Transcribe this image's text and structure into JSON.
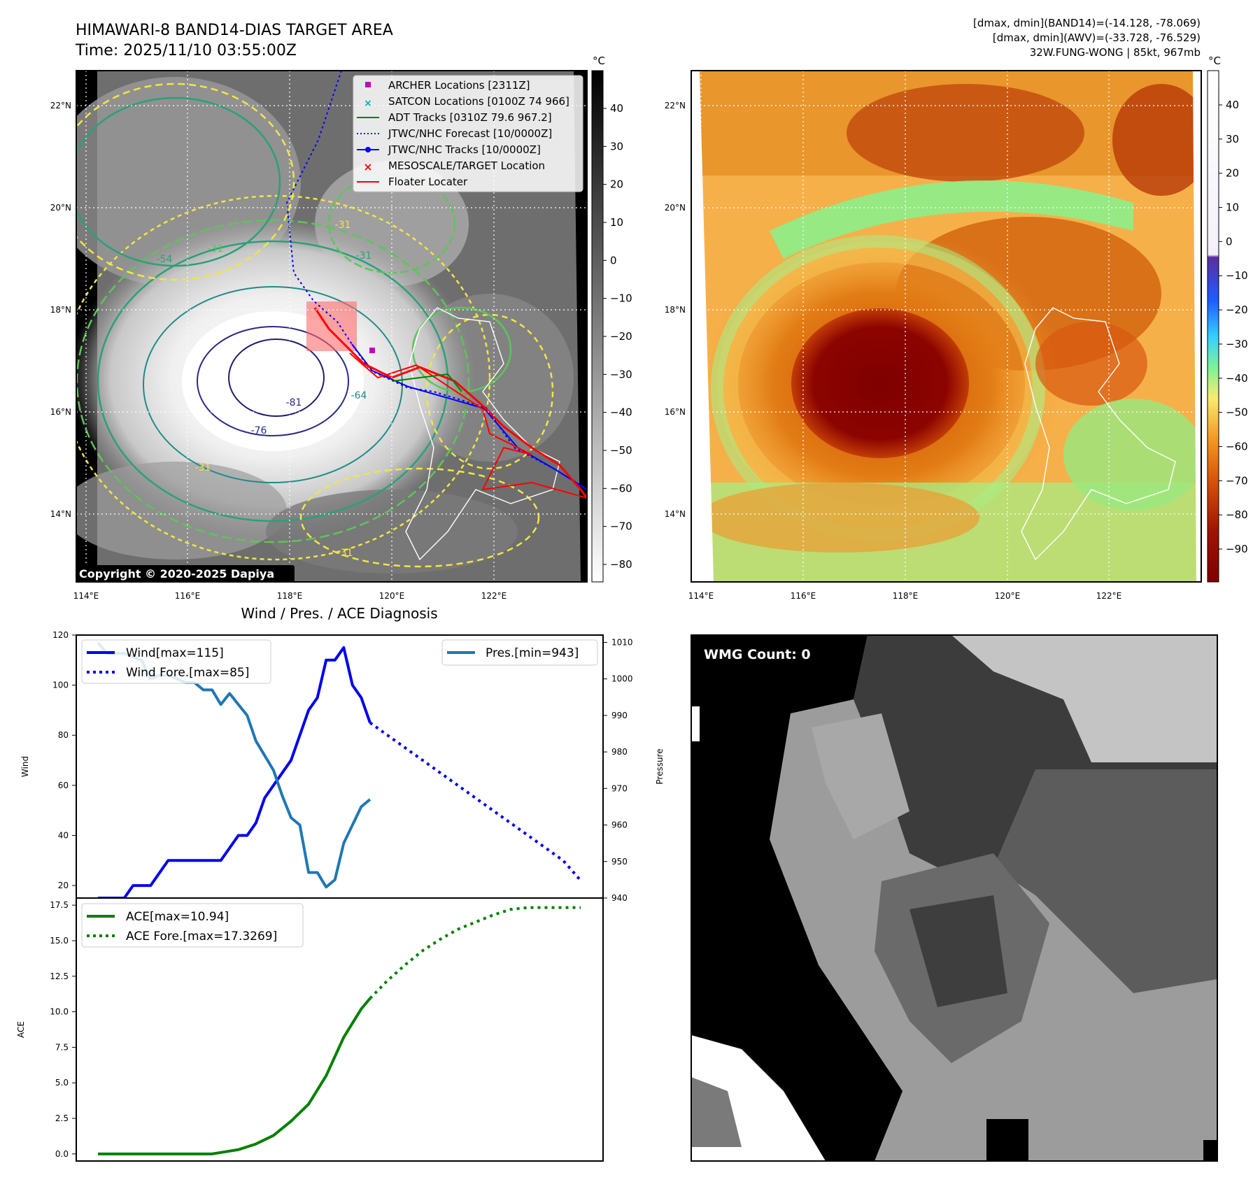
{
  "header": {
    "title_line1": "HIMAWARI-8 BAND14-DIAS TARGET AREA",
    "title_line2": "Time: 2025/11/10 03:55:00Z",
    "stats_line1": "[dmax, dmin](BAND14)=(-14.128, -78.069)",
    "stats_line2": "[dmax, dmin](AWV)=(-33.728, -76.529)",
    "stats_line3": "32W.FUNG-WONG | 85kt, 967mb"
  },
  "map_panel": {
    "lat_labels": [
      "22°N",
      "20°N",
      "18°N",
      "16°N",
      "14°N"
    ],
    "lon_labels": [
      "114°E",
      "116°E",
      "118°E",
      "120°E",
      "122°E"
    ],
    "colorbar_unit": "°C",
    "colorbar_ticks": [
      "40",
      "30",
      "20",
      "10",
      "0",
      "−10",
      "−20",
      "−30",
      "−40",
      "−50",
      "−60",
      "−70",
      "−80"
    ],
    "copyright": "Copyright © 2020-2025 Dapiya",
    "contour_labels": [
      "-81",
      "-76",
      "-64",
      "-31",
      "-31",
      "-31",
      "-31",
      "-54",
      "-31"
    ],
    "legend": [
      {
        "label": "ARCHER Locations [2311Z]",
        "color": "#c000c0",
        "marker": "square"
      },
      {
        "label": "SATCON Locations [0100Z 74 966]",
        "color": "#00b0b0",
        "marker": "x"
      },
      {
        "label": "ADT Tracks [0310Z 79.6 967.2]",
        "color": "#008000",
        "marker": "line"
      },
      {
        "label": "JTWC/NHC Forecast [10/0000Z]",
        "color": "#0000ff",
        "marker": "dotted"
      },
      {
        "label": "JTWC/NHC Tracks [10/0000Z]",
        "color": "#0000ff",
        "marker": "line-dot"
      },
      {
        "label": "MESOSCALE/TARGET Location",
        "color": "#ff0000",
        "marker": "x"
      },
      {
        "label": "Floater Locater",
        "color": "#ff0000",
        "marker": "line"
      }
    ]
  },
  "awv_panel": {
    "lat_labels": [
      "22°N",
      "20°N",
      "18°N",
      "16°N",
      "14°N"
    ],
    "lon_labels": [
      "114°E",
      "116°E",
      "118°E",
      "120°E",
      "122°E"
    ],
    "colorbar_unit": "°C",
    "colorbar_ticks": [
      "40",
      "30",
      "20",
      "10",
      "0",
      "−10",
      "−20",
      "−30",
      "−40",
      "−50",
      "−60",
      "−70",
      "−80",
      "−90"
    ]
  },
  "wmg_panel": {
    "count_label": "WMG Count: 0"
  },
  "diagnosis": {
    "title": "Wind / Pres. / ACE Diagnosis",
    "wind_axis_label": "Wind",
    "pressure_axis_label": "Pressure",
    "ace_axis_label": "ACE",
    "wind_ticks": [
      "120",
      "100",
      "80",
      "60",
      "40",
      "20"
    ],
    "pressure_ticks": [
      "1010",
      "1000",
      "990",
      "980",
      "970",
      "960",
      "950",
      "940"
    ],
    "ace_ticks": [
      "17.5",
      "15.0",
      "12.5",
      "10.0",
      "7.5",
      "5.0",
      "2.5",
      "0.0"
    ],
    "legend_wind": "Wind[max=115]",
    "legend_wind_fore": "Wind Fore.[max=85]",
    "legend_pres": "Pres.[min=943]",
    "legend_ace": "ACE[max=10.94]",
    "legend_ace_fore": "ACE Fore.[max=17.3269]"
  },
  "chart_data": [
    {
      "type": "line",
      "title": "Wind / Pres. / ACE Diagnosis",
      "ylabel": "Wind",
      "y2label": "Pressure",
      "ylim": [
        15,
        120
      ],
      "y2lim": [
        940,
        1012
      ],
      "x_index": "6-hourly steps",
      "series": [
        {
          "name": "Wind[max=115]",
          "axis": "left",
          "color": "#0000ee",
          "style": "solid",
          "x": [
            0,
            1,
            2,
            3,
            4,
            5,
            6,
            7,
            8,
            9,
            10,
            11,
            12,
            13,
            14,
            15,
            16,
            17,
            18,
            19,
            20,
            21,
            22,
            23,
            24,
            25,
            26,
            27,
            28,
            29,
            30,
            31
          ],
          "values": [
            15,
            15,
            15,
            15,
            20,
            20,
            20,
            25,
            30,
            30,
            30,
            30,
            30,
            30,
            30,
            35,
            40,
            40,
            45,
            55,
            60,
            65,
            70,
            80,
            90,
            95,
            110,
            110,
            115,
            100,
            95,
            85
          ]
        },
        {
          "name": "Wind Fore.[max=85]",
          "axis": "left",
          "color": "#0000ee",
          "style": "dotted",
          "x": [
            31,
            33,
            35,
            37,
            39,
            41,
            43,
            45,
            47,
            49,
            51,
            53,
            55
          ],
          "values": [
            85,
            80,
            75,
            70,
            65,
            60,
            55,
            50,
            45,
            40,
            35,
            30,
            22
          ]
        },
        {
          "name": "Pres.[min=943]",
          "axis": "right",
          "color": "#1f77b4",
          "style": "solid",
          "x": [
            0,
            1,
            2,
            3,
            4,
            5,
            6,
            7,
            8,
            9,
            10,
            11,
            12,
            13,
            14,
            15,
            16,
            17,
            18,
            19,
            20,
            21,
            22,
            23,
            24,
            25,
            26,
            27,
            28,
            29,
            30,
            31
          ],
          "values": [
            1010,
            1007,
            1007,
            1007,
            1006,
            1005,
            1000,
            1001,
            1001,
            1000,
            999,
            999,
            997,
            997,
            993,
            996,
            993,
            990,
            983,
            979,
            975,
            968,
            962,
            960,
            947,
            947,
            943,
            945,
            955,
            960,
            965,
            967
          ]
        }
      ]
    },
    {
      "type": "line",
      "ylabel": "ACE",
      "ylim": [
        -0.5,
        18
      ],
      "series": [
        {
          "name": "ACE[max=10.94]",
          "color": "#008000",
          "style": "solid",
          "x": [
            0,
            2,
            4,
            6,
            8,
            10,
            12,
            13,
            14,
            16,
            18,
            20,
            22,
            24,
            26,
            28,
            30,
            31
          ],
          "values": [
            0,
            0,
            0,
            0,
            0,
            0,
            0,
            0,
            0.1,
            0.3,
            0.7,
            1.3,
            2.3,
            3.5,
            5.5,
            8.2,
            10.2,
            10.94
          ]
        },
        {
          "name": "ACE Fore.[max=17.3269]",
          "color": "#008000",
          "style": "dotted",
          "x": [
            31,
            33,
            35,
            37,
            39,
            41,
            43,
            45,
            47,
            49,
            51,
            53,
            55
          ],
          "values": [
            10.94,
            12.2,
            13.3,
            14.3,
            15.1,
            15.8,
            16.3,
            16.8,
            17.2,
            17.33,
            17.33,
            17.33,
            17.33
          ]
        }
      ]
    }
  ]
}
